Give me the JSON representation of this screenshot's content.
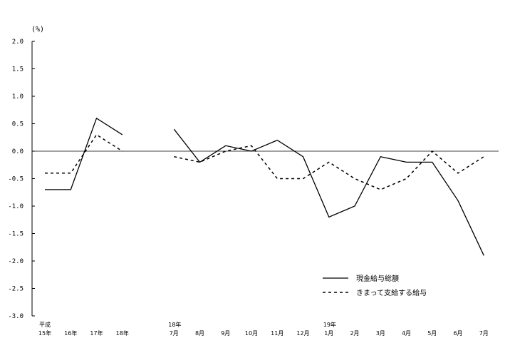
{
  "chart_data": {
    "type": "line",
    "unit_label": "(%)",
    "ylim": [
      -3.0,
      2.0
    ],
    "yticks": [
      "2.0",
      "1.5",
      "1.0",
      "0.5",
      "0.0",
      "-0.5",
      "-1.0",
      "-1.5",
      "-2.0",
      "-2.5",
      "-3.0"
    ],
    "categories": [
      {
        "top": "平成",
        "bottom": "15年"
      },
      {
        "top": "",
        "bottom": "16年"
      },
      {
        "top": "",
        "bottom": "17年"
      },
      {
        "top": "",
        "bottom": "18年"
      },
      {
        "top": "",
        "bottom": ""
      },
      {
        "top": "18年",
        "bottom": "7月"
      },
      {
        "top": "",
        "bottom": "8月"
      },
      {
        "top": "",
        "bottom": "9月"
      },
      {
        "top": "",
        "bottom": "10月"
      },
      {
        "top": "",
        "bottom": "11月"
      },
      {
        "top": "",
        "bottom": "12月"
      },
      {
        "top": "19年",
        "bottom": "1月"
      },
      {
        "top": "",
        "bottom": "2月"
      },
      {
        "top": "",
        "bottom": "3月"
      },
      {
        "top": "",
        "bottom": "4月"
      },
      {
        "top": "",
        "bottom": "5月"
      },
      {
        "top": "",
        "bottom": "6月"
      },
      {
        "top": "",
        "bottom": "7月"
      }
    ],
    "series": [
      {
        "name": "現金給与総額",
        "style": "solid",
        "color": "#000000",
        "values": [
          -0.7,
          -0.7,
          0.6,
          0.3,
          null,
          0.4,
          -0.2,
          0.1,
          0.0,
          0.2,
          -0.1,
          -1.2,
          -1.0,
          -0.1,
          -0.2,
          -0.2,
          -0.9,
          -1.9
        ]
      },
      {
        "name": "きまって支給する給与",
        "style": "dashed",
        "color": "#000000",
        "values": [
          -0.4,
          -0.4,
          0.3,
          0.0,
          null,
          -0.1,
          -0.2,
          0.0,
          0.1,
          -0.5,
          -0.5,
          -0.2,
          -0.5,
          -0.7,
          -0.5,
          0.0,
          -0.4,
          -0.1
        ]
      }
    ],
    "grid": false,
    "legend_position": "bottom-right"
  }
}
